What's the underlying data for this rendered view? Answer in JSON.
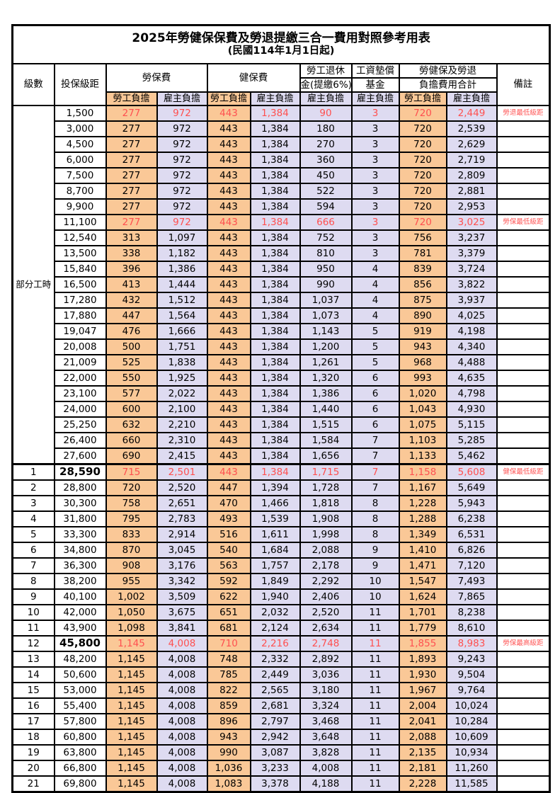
{
  "title": "2025年勞健保保費及勞退提繳三合一費用對照參考用表",
  "subtitle": "(民國114年1月1日起)",
  "colors": {
    "employee_col_bg": "#FAC897",
    "employer_col_bg": "#DEDBF1",
    "highlight_text": "#FF5050",
    "border": "#000000"
  },
  "header": {
    "level": "級數",
    "bracket": "投保級距",
    "labor_ins": "勞保費",
    "health_ins": "健保費",
    "pension_line1": "勞工退休",
    "pension_line2": "金(提繳6%)",
    "fund_line1": "工資墊償",
    "fund_line2": "基金",
    "total_line1": "勞健保及勞退",
    "total_line2": "負擔費用合計",
    "remark": "備註",
    "employee": "勞工負擔",
    "employer": "雇主負擔"
  },
  "part_time_label": "部分工時",
  "table": {
    "columns": [
      "level",
      "bracket",
      "labor_employee",
      "labor_employer",
      "health_employee",
      "health_employer",
      "pension_employer",
      "fund_employer",
      "total_employee",
      "total_employer",
      "remark",
      "flags(r=red,b=bold-bracket)"
    ],
    "part_time_rowspan": 23,
    "rows": [
      [
        "",
        "1,500",
        "277",
        "972",
        "443",
        "1,384",
        "90",
        "3",
        "720",
        "2,449",
        "勞退最低級距",
        "r"
      ],
      [
        "",
        "3,000",
        "277",
        "972",
        "443",
        "1,384",
        "180",
        "3",
        "720",
        "2,539",
        "",
        ""
      ],
      [
        "",
        "4,500",
        "277",
        "972",
        "443",
        "1,384",
        "270",
        "3",
        "720",
        "2,629",
        "",
        ""
      ],
      [
        "",
        "6,000",
        "277",
        "972",
        "443",
        "1,384",
        "360",
        "3",
        "720",
        "2,719",
        "",
        ""
      ],
      [
        "",
        "7,500",
        "277",
        "972",
        "443",
        "1,384",
        "450",
        "3",
        "720",
        "2,809",
        "",
        ""
      ],
      [
        "",
        "8,700",
        "277",
        "972",
        "443",
        "1,384",
        "522",
        "3",
        "720",
        "2,881",
        "",
        ""
      ],
      [
        "",
        "9,900",
        "277",
        "972",
        "443",
        "1,384",
        "594",
        "3",
        "720",
        "2,953",
        "",
        ""
      ],
      [
        "",
        "11,100",
        "277",
        "972",
        "443",
        "1,384",
        "666",
        "3",
        "720",
        "3,025",
        "勞保最低級距",
        "r"
      ],
      [
        "",
        "12,540",
        "313",
        "1,097",
        "443",
        "1,384",
        "752",
        "3",
        "756",
        "3,237",
        "",
        ""
      ],
      [
        "",
        "13,500",
        "338",
        "1,182",
        "443",
        "1,384",
        "810",
        "3",
        "781",
        "3,379",
        "",
        ""
      ],
      [
        "",
        "15,840",
        "396",
        "1,386",
        "443",
        "1,384",
        "950",
        "4",
        "839",
        "3,724",
        "",
        ""
      ],
      [
        "",
        "16,500",
        "413",
        "1,444",
        "443",
        "1,384",
        "990",
        "4",
        "856",
        "3,822",
        "",
        ""
      ],
      [
        "",
        "17,280",
        "432",
        "1,512",
        "443",
        "1,384",
        "1,037",
        "4",
        "875",
        "3,937",
        "",
        ""
      ],
      [
        "",
        "17,880",
        "447",
        "1,564",
        "443",
        "1,384",
        "1,073",
        "4",
        "890",
        "4,025",
        "",
        ""
      ],
      [
        "",
        "19,047",
        "476",
        "1,666",
        "443",
        "1,384",
        "1,143",
        "5",
        "919",
        "4,198",
        "",
        ""
      ],
      [
        "",
        "20,008",
        "500",
        "1,751",
        "443",
        "1,384",
        "1,200",
        "5",
        "943",
        "4,340",
        "",
        ""
      ],
      [
        "",
        "21,009",
        "525",
        "1,838",
        "443",
        "1,384",
        "1,261",
        "5",
        "968",
        "4,488",
        "",
        ""
      ],
      [
        "",
        "22,000",
        "550",
        "1,925",
        "443",
        "1,384",
        "1,320",
        "6",
        "993",
        "4,635",
        "",
        ""
      ],
      [
        "",
        "23,100",
        "577",
        "2,022",
        "443",
        "1,384",
        "1,386",
        "6",
        "1,020",
        "4,798",
        "",
        ""
      ],
      [
        "",
        "24,000",
        "600",
        "2,100",
        "443",
        "1,384",
        "1,440",
        "6",
        "1,043",
        "4,930",
        "",
        ""
      ],
      [
        "",
        "25,250",
        "632",
        "2,210",
        "443",
        "1,384",
        "1,515",
        "6",
        "1,075",
        "5,115",
        "",
        ""
      ],
      [
        "",
        "26,400",
        "660",
        "2,310",
        "443",
        "1,384",
        "1,584",
        "7",
        "1,103",
        "5,285",
        "",
        ""
      ],
      [
        "",
        "27,600",
        "690",
        "2,415",
        "443",
        "1,384",
        "1,656",
        "7",
        "1,133",
        "5,462",
        "",
        ""
      ],
      [
        "1",
        "28,590",
        "715",
        "2,501",
        "443",
        "1,384",
        "1,715",
        "7",
        "1,158",
        "5,608",
        "健保最低級距",
        "rb"
      ],
      [
        "2",
        "28,800",
        "720",
        "2,520",
        "447",
        "1,394",
        "1,728",
        "7",
        "1,167",
        "5,649",
        "",
        ""
      ],
      [
        "3",
        "30,300",
        "758",
        "2,651",
        "470",
        "1,466",
        "1,818",
        "8",
        "1,228",
        "5,943",
        "",
        ""
      ],
      [
        "4",
        "31,800",
        "795",
        "2,783",
        "493",
        "1,539",
        "1,908",
        "8",
        "1,288",
        "6,238",
        "",
        ""
      ],
      [
        "5",
        "33,300",
        "833",
        "2,914",
        "516",
        "1,611",
        "1,998",
        "8",
        "1,349",
        "6,531",
        "",
        ""
      ],
      [
        "6",
        "34,800",
        "870",
        "3,045",
        "540",
        "1,684",
        "2,088",
        "9",
        "1,410",
        "6,826",
        "",
        ""
      ],
      [
        "7",
        "36,300",
        "908",
        "3,176",
        "563",
        "1,757",
        "2,178",
        "9",
        "1,471",
        "7,120",
        "",
        ""
      ],
      [
        "8",
        "38,200",
        "955",
        "3,342",
        "592",
        "1,849",
        "2,292",
        "10",
        "1,547",
        "7,493",
        "",
        ""
      ],
      [
        "9",
        "40,100",
        "1,002",
        "3,509",
        "622",
        "1,940",
        "2,406",
        "10",
        "1,624",
        "7,865",
        "",
        ""
      ],
      [
        "10",
        "42,000",
        "1,050",
        "3,675",
        "651",
        "2,032",
        "2,520",
        "11",
        "1,701",
        "8,238",
        "",
        ""
      ],
      [
        "11",
        "43,900",
        "1,098",
        "3,841",
        "681",
        "2,124",
        "2,634",
        "11",
        "1,779",
        "8,610",
        "",
        ""
      ],
      [
        "12",
        "45,800",
        "1,145",
        "4,008",
        "710",
        "2,216",
        "2,748",
        "11",
        "1,855",
        "8,983",
        "勞保最高級距",
        "rb"
      ],
      [
        "13",
        "48,200",
        "1,145",
        "4,008",
        "748",
        "2,332",
        "2,892",
        "11",
        "1,893",
        "9,243",
        "",
        ""
      ],
      [
        "14",
        "50,600",
        "1,145",
        "4,008",
        "785",
        "2,449",
        "3,036",
        "11",
        "1,930",
        "9,504",
        "",
        ""
      ],
      [
        "15",
        "53,000",
        "1,145",
        "4,008",
        "822",
        "2,565",
        "3,180",
        "11",
        "1,967",
        "9,764",
        "",
        ""
      ],
      [
        "16",
        "55,400",
        "1,145",
        "4,008",
        "859",
        "2,681",
        "3,324",
        "11",
        "2,004",
        "10,024",
        "",
        ""
      ],
      [
        "17",
        "57,800",
        "1,145",
        "4,008",
        "896",
        "2,797",
        "3,468",
        "11",
        "2,041",
        "10,284",
        "",
        ""
      ],
      [
        "18",
        "60,800",
        "1,145",
        "4,008",
        "943",
        "2,942",
        "3,648",
        "11",
        "2,088",
        "10,609",
        "",
        ""
      ],
      [
        "19",
        "63,800",
        "1,145",
        "4,008",
        "990",
        "3,087",
        "3,828",
        "11",
        "2,135",
        "10,934",
        "",
        ""
      ],
      [
        "20",
        "66,800",
        "1,145",
        "4,008",
        "1,036",
        "3,233",
        "4,008",
        "11",
        "2,181",
        "11,260",
        "",
        ""
      ],
      [
        "21",
        "69,800",
        "1,145",
        "4,008",
        "1,083",
        "3,378",
        "4,188",
        "11",
        "2,228",
        "11,585",
        "",
        ""
      ]
    ]
  }
}
